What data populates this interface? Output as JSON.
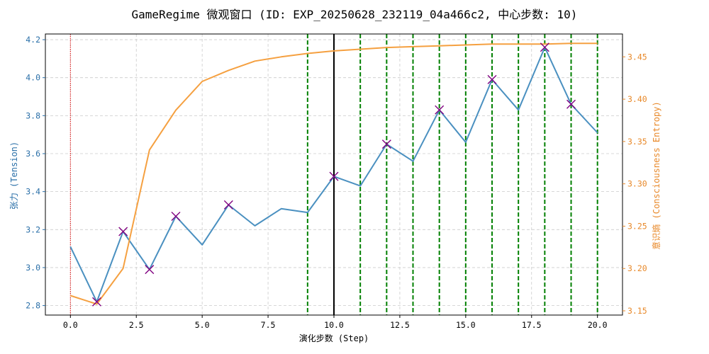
{
  "chart_data": {
    "type": "line",
    "title": "GameRegime 微观窗口 (ID: EXP_20250628_232119_04a466c2, 中心步数: 10)",
    "xlabel": "演化步数 (Step)",
    "ylabel_left": "张力 (Tension)",
    "ylabel_right": "意识熵 (Consciousness Entropy)",
    "xlim": [
      -0.95,
      20.95
    ],
    "ylim_left": [
      2.75,
      4.23
    ],
    "ylim_right": [
      3.145,
      3.477
    ],
    "x_ticks": [
      0,
      2.5,
      5,
      7.5,
      10,
      12.5,
      15,
      17.5,
      20
    ],
    "x_tick_labels": [
      "0.0",
      "2.5",
      "5.0",
      "7.5",
      "10.0",
      "12.5",
      "15.0",
      "17.5",
      "20.0"
    ],
    "y_left_ticks": [
      2.8,
      3.0,
      3.2,
      3.4,
      3.6,
      3.8,
      4.0,
      4.2
    ],
    "y_left_tick_labels": [
      "2.8",
      "3.0",
      "3.2",
      "3.4",
      "3.6",
      "3.8",
      "4.0",
      "4.2"
    ],
    "y_right_ticks": [
      3.15,
      3.2,
      3.25,
      3.3,
      3.35,
      3.4,
      3.45
    ],
    "y_right_tick_labels": [
      "3.15",
      "3.20",
      "3.25",
      "3.30",
      "3.35",
      "3.40",
      "3.45"
    ],
    "grid": true,
    "series": [
      {
        "axis": "left",
        "color": "#4a90c0",
        "x": [
          0,
          1,
          2,
          3,
          4,
          5,
          6,
          7,
          8,
          9,
          10,
          11,
          12,
          13,
          14,
          15,
          16,
          17,
          18,
          19,
          20
        ],
        "values": [
          3.11,
          2.82,
          3.19,
          2.99,
          3.27,
          3.12,
          3.33,
          3.22,
          3.31,
          3.29,
          3.48,
          3.43,
          3.65,
          3.56,
          3.83,
          3.66,
          3.99,
          3.83,
          4.16,
          3.86,
          3.71
        ]
      },
      {
        "axis": "right",
        "color": "#f5a040",
        "x": [
          0,
          1,
          2,
          3,
          4,
          5,
          6,
          7,
          8,
          9,
          10,
          11,
          12,
          13,
          14,
          15,
          16,
          17,
          18,
          19,
          20
        ],
        "values": [
          3.168,
          3.158,
          3.2,
          3.34,
          3.387,
          3.421,
          3.434,
          3.445,
          3.45,
          3.454,
          3.457,
          3.459,
          3.461,
          3.462,
          3.463,
          3.464,
          3.465,
          3.465,
          3.465,
          3.466,
          3.466
        ]
      }
    ],
    "markers": {
      "color": "#800080",
      "symbol": "x",
      "x": [
        1,
        2,
        3,
        4,
        6,
        10,
        12,
        14,
        16,
        18,
        19
      ],
      "values": [
        2.82,
        3.19,
        2.99,
        3.27,
        3.33,
        3.48,
        3.65,
        3.83,
        3.99,
        4.16,
        3.86
      ]
    },
    "vlines_green_dashed": [
      9,
      10,
      11,
      12,
      13,
      14,
      15,
      16,
      17,
      18,
      19,
      20
    ],
    "vline_center": 10,
    "vline_red_dotted": 0,
    "colors": {
      "left_axis": "#2a6fa8",
      "right_axis": "#e8892a",
      "green_lines": "#008000",
      "center_line": "#000000",
      "red_line": "#e00000"
    }
  }
}
